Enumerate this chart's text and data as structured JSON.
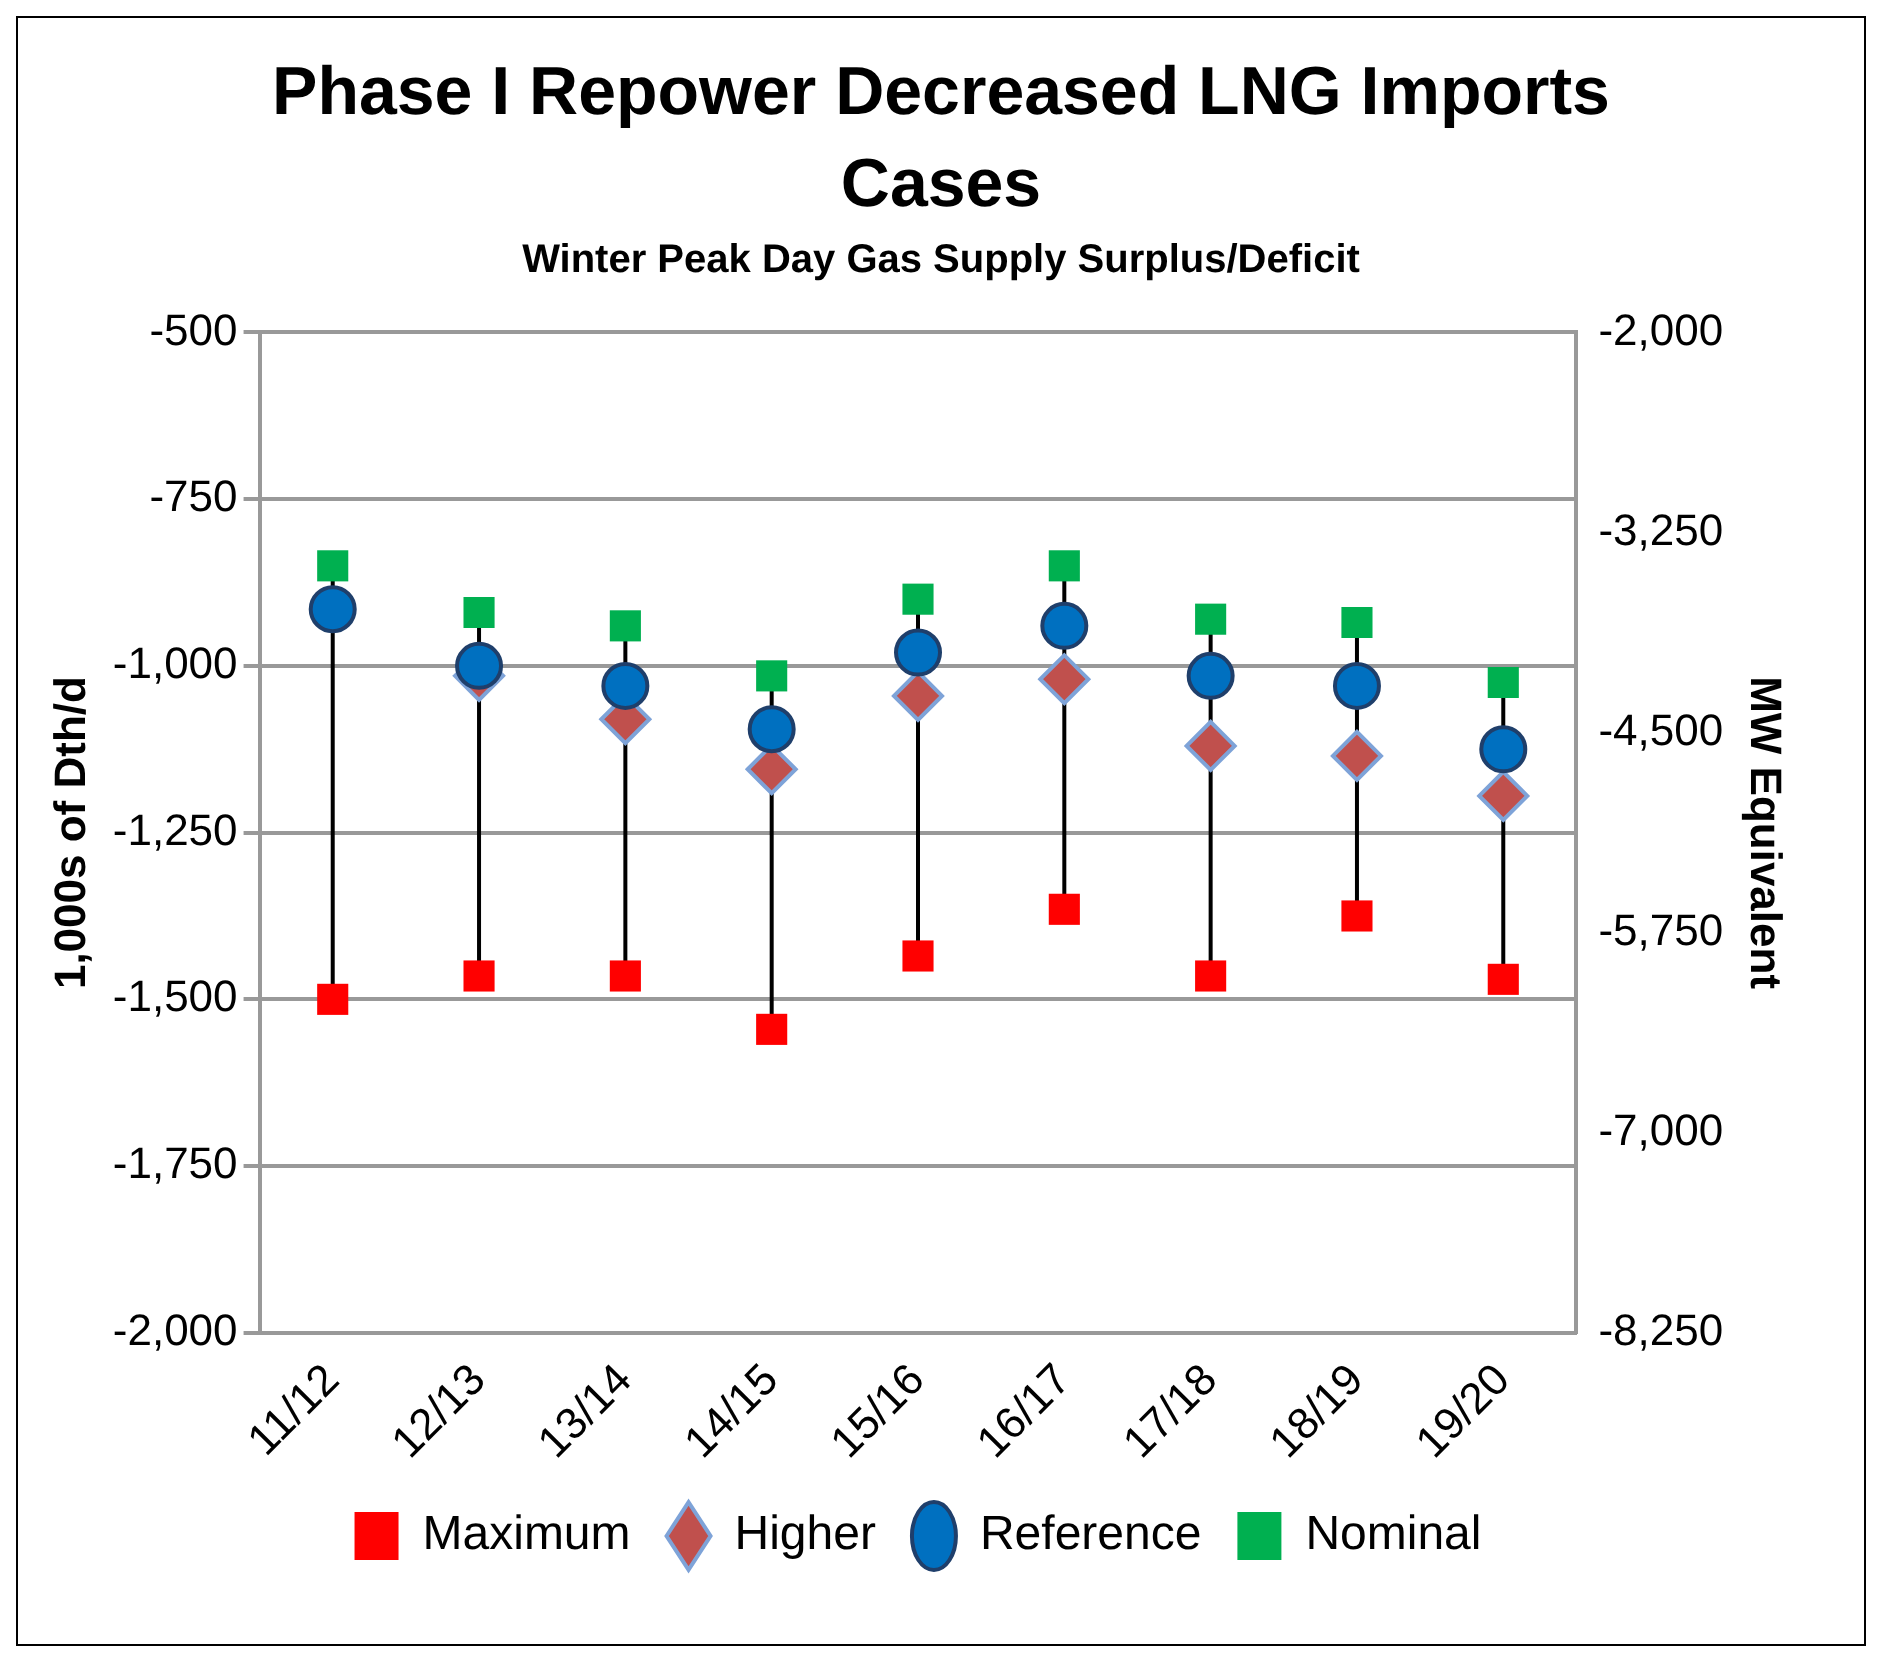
{
  "chart_data": {
    "type": "scatter",
    "title": "Phase I Repower Decreased LNG Imports Cases",
    "subtitle": "Winter Peak Day Gas Supply Surplus/Deficit",
    "ylabel": "1,000s of Dth/d",
    "y2label": "MW Equivalent",
    "categories": [
      "11/12",
      "12/13",
      "13/14",
      "14/15",
      "15/16",
      "16/17",
      "17/18",
      "18/19",
      "19/20"
    ],
    "series": [
      {
        "name": "Maximum",
        "color": "#ff0000",
        "marker": "square",
        "values": [
          -1500,
          -1465,
          -1465,
          -1545,
          -1435,
          -1365,
          -1465,
          -1375,
          -1470
        ]
      },
      {
        "name": "Higher",
        "color": "#c0504d",
        "marker": "diamond",
        "values": [
          null,
          -1015,
          -1080,
          -1155,
          -1045,
          -1020,
          -1120,
          -1135,
          -1195
        ]
      },
      {
        "name": "Reference",
        "color": "#0070c0",
        "marker": "circle",
        "values": [
          -915,
          -1000,
          -1030,
          -1095,
          -980,
          -940,
          -1015,
          -1030,
          -1125
        ]
      },
      {
        "name": "Nominal",
        "color": "#00b050",
        "marker": "square",
        "values": [
          -850,
          -920,
          -940,
          -1015,
          -900,
          -850,
          -930,
          -935,
          -1025
        ]
      }
    ],
    "ylim": [
      -2000,
      -500
    ],
    "yticks": [
      {
        "value": -2000,
        "label": "-2,000"
      },
      {
        "value": -1750,
        "label": "-1,750"
      },
      {
        "value": -1500,
        "label": "-1,500"
      },
      {
        "value": -1250,
        "label": "-1,250"
      },
      {
        "value": -1000,
        "label": "-1,000"
      },
      -750,
      -500
    ],
    "y2lim": [
      -8250,
      -2000
    ],
    "y2ticks": [
      {
        "value": -8250,
        "label": "-8,250"
      },
      {
        "value": -7000,
        "label": "-7,000"
      },
      {
        "value": -5750,
        "label": "-5,750"
      },
      {
        "value": -4500,
        "label": "-4,500"
      },
      {
        "value": -3250,
        "label": "-3,250"
      },
      {
        "value": -2000,
        "label": "-2,000"
      }
    ],
    "grid": "y",
    "legend": "bottom"
  }
}
